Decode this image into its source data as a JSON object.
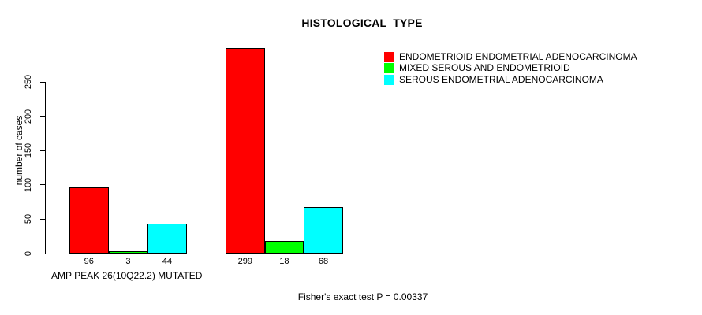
{
  "chart_data": {
    "type": "bar",
    "title": "HISTOLOGICAL_TYPE",
    "ylabel": "number of cases",
    "xlabel": "AMP PEAK 26(10Q22.2) MUTATED",
    "annotation": "Fisher's exact test P = 0.00337",
    "categories": [
      "",
      ""
    ],
    "series": [
      {
        "name": "ENDOMETRIOID ENDOMETRIAL ADENOCARCINOMA",
        "color": "#FF0000",
        "values": [
          96,
          299
        ]
      },
      {
        "name": "MIXED SEROUS AND ENDOMETRIOID",
        "color": "#00FF00",
        "values": [
          3,
          18
        ]
      },
      {
        "name": "SEROUS ENDOMETRIAL ADENOCARCINOMA",
        "color": "#00FFFF",
        "values": [
          44,
          68
        ]
      }
    ],
    "yticks": [
      0,
      50,
      100,
      150,
      200,
      250
    ],
    "ylim": [
      0,
      300
    ],
    "grid": false,
    "legend_position": "top-right",
    "bar_value_labels": true,
    "axis_color": "#000000",
    "text_color": "#000000"
  }
}
